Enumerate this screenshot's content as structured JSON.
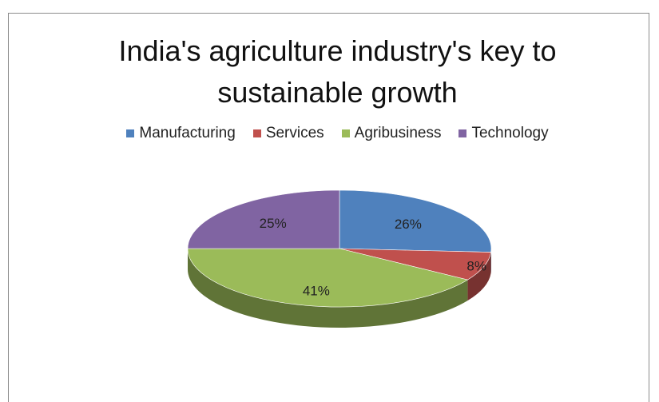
{
  "chart_data": {
    "type": "pie",
    "title": "India's agriculture industry's key to sustainable growth",
    "legend_position": "top",
    "categories": [
      "Manufacturing",
      "Services",
      "Agribusiness",
      "Technology"
    ],
    "values": [
      26,
      8,
      41,
      25
    ],
    "labels": [
      "26%",
      "8%",
      "41%",
      "25%"
    ],
    "colors": [
      "#4f81bd",
      "#c0504d",
      "#9bbb59",
      "#8064a2"
    ],
    "style": "3d"
  }
}
